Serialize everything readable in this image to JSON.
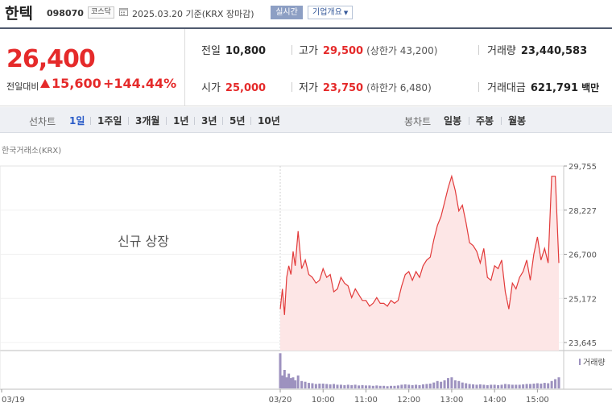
{
  "stock": {
    "name": "한텍",
    "code": "098070",
    "market": "코스닥",
    "base_date": "2025.03.20 기준(KRX 장마감)",
    "realtime_label": "실시간",
    "overview_label": "기업개요"
  },
  "price": {
    "current": "26,400",
    "change_label": "전일대비",
    "change_abs": "15,600",
    "change_pct": "+144.44%"
  },
  "stats": {
    "prev_close": {
      "label": "전일",
      "value": "10,800"
    },
    "open": {
      "label": "시가",
      "value": "25,000"
    },
    "high": {
      "label": "고가",
      "value": "29,500",
      "sub": "(상한가 43,200)"
    },
    "low": {
      "label": "저가",
      "value": "23,750",
      "sub": "(하한가 6,480)"
    },
    "volume": {
      "label": "거래량",
      "value": "23,440,583"
    },
    "amount": {
      "label": "거래대금",
      "value": "621,791",
      "unit": "백만"
    }
  },
  "periods": {
    "line_label": "선차트",
    "line_items": [
      "1일",
      "1주일",
      "3개월",
      "1년",
      "3년",
      "5년",
      "10년"
    ],
    "active_index": 0,
    "candle_label": "봉차트",
    "candle_items": [
      "일봉",
      "주봉",
      "월봉"
    ]
  },
  "exchange_label": "한국거래소(KRX)",
  "colors": {
    "up": "#e52a2a",
    "line": "#e23a3a",
    "area": "#fde6e6",
    "volume": "#9d92bf",
    "active_tab": "#2b5cc8"
  },
  "chart_data": {
    "type": "area",
    "annotation": "신규 상장",
    "volume_legend": "거래량",
    "y_ticks": [
      "29,755",
      "28,227",
      "26,700",
      "25,172",
      "23,645"
    ],
    "ylim": [
      23645,
      29755
    ],
    "x_ticks": [
      "03/19",
      "03/20",
      "10:00",
      "11:00",
      "12:00",
      "13:00",
      "14:00",
      "15:00"
    ],
    "series": [
      {
        "x": [
          "09:00",
          "09:03",
          "09:06",
          "09:09",
          "09:12",
          "09:15",
          "09:18",
          "09:21",
          "09:25",
          "09:30",
          "09:35",
          "09:40",
          "09:45",
          "09:50",
          "09:55",
          "10:00",
          "10:05",
          "10:10",
          "10:15",
          "10:20",
          "10:25",
          "10:30",
          "10:35",
          "10:40",
          "10:45",
          "10:50",
          "10:55",
          "11:00",
          "11:05",
          "11:10",
          "11:15",
          "11:20",
          "11:25",
          "11:30",
          "11:35",
          "11:40",
          "11:45",
          "11:50",
          "11:55",
          "12:00",
          "12:05",
          "12:10",
          "12:15",
          "12:20",
          "12:25",
          "12:30",
          "12:35",
          "12:40",
          "12:45",
          "12:50",
          "12:55",
          "13:00",
          "13:05",
          "13:10",
          "13:15",
          "13:20",
          "13:25",
          "13:30",
          "13:35",
          "13:40",
          "13:45",
          "13:50",
          "13:55",
          "14:00",
          "14:05",
          "14:10",
          "14:15",
          "14:20",
          "14:25",
          "14:30",
          "14:35",
          "14:40",
          "14:45",
          "14:50",
          "14:55",
          "15:00",
          "15:05",
          "15:10",
          "15:15",
          "15:20",
          "15:25",
          "15:30"
        ],
        "values": [
          24800,
          25500,
          24600,
          25900,
          26300,
          26000,
          26800,
          26300,
          27500,
          26200,
          26500,
          26000,
          25900,
          25700,
          25800,
          26200,
          25900,
          26000,
          25400,
          25500,
          25900,
          25700,
          25600,
          25200,
          25500,
          25300,
          25100,
          25100,
          24900,
          25000,
          25200,
          25000,
          25000,
          24900,
          25100,
          25000,
          25100,
          25600,
          26000,
          26100,
          25800,
          26100,
          25900,
          26300,
          26500,
          26600,
          27200,
          27700,
          28000,
          28500,
          29000,
          29400,
          28900,
          28200,
          28400,
          27800,
          27100,
          27000,
          26800,
          26400,
          26900,
          25900,
          25800,
          26300,
          26200,
          26500,
          25400,
          24800,
          25700,
          25500,
          25900,
          26100,
          26500,
          25800,
          26700,
          27300,
          26500,
          26900,
          26400,
          29400,
          29400,
          26400
        ]
      }
    ],
    "volume": [
      0.95,
      0.35,
      0.5,
      0.3,
      0.4,
      0.28,
      0.3,
      0.22,
      0.35,
      0.2,
      0.18,
      0.15,
      0.14,
      0.12,
      0.13,
      0.13,
      0.12,
      0.11,
      0.12,
      0.1,
      0.1,
      0.09,
      0.1,
      0.09,
      0.1,
      0.08,
      0.09,
      0.08,
      0.08,
      0.07,
      0.08,
      0.07,
      0.07,
      0.06,
      0.07,
      0.07,
      0.08,
      0.1,
      0.11,
      0.1,
      0.09,
      0.1,
      0.09,
      0.11,
      0.12,
      0.13,
      0.16,
      0.2,
      0.18,
      0.22,
      0.28,
      0.3,
      0.22,
      0.2,
      0.16,
      0.14,
      0.12,
      0.11,
      0.1,
      0.11,
      0.1,
      0.09,
      0.1,
      0.1,
      0.09,
      0.1,
      0.12,
      0.11,
      0.1,
      0.1,
      0.1,
      0.11,
      0.12,
      0.12,
      0.13,
      0.14,
      0.13,
      0.15,
      0.14,
      0.2,
      0.25,
      0.3
    ]
  }
}
